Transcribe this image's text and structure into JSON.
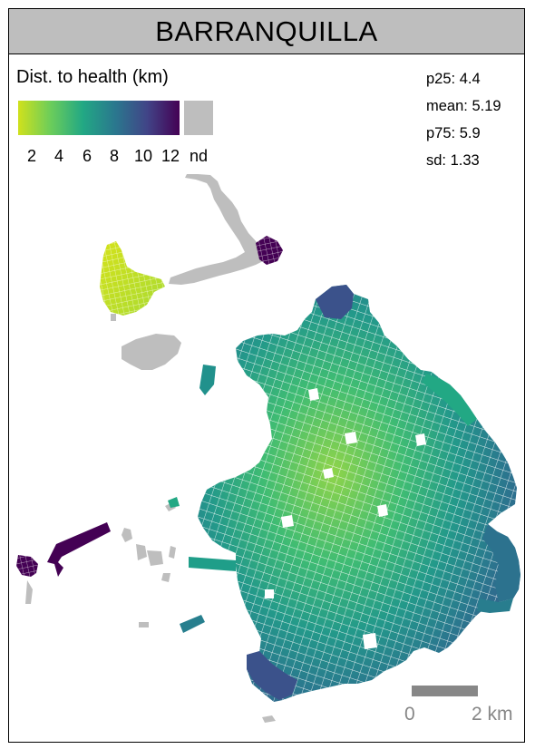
{
  "title": "BARRANQUILLA",
  "legend": {
    "title": "Dist. to health (km)",
    "ticks": [
      "2",
      "4",
      "6",
      "8",
      "10",
      "12"
    ],
    "nodata_label": "nd",
    "gradient_colors": [
      "#d0e11c",
      "#6ccd5a",
      "#22a884",
      "#2a788e",
      "#414487",
      "#440154"
    ]
  },
  "stats": {
    "p25": "p25: 4.4",
    "mean": "mean: 5.19",
    "p75": "p75: 5.9",
    "sd": "sd: 1.33"
  },
  "scale": {
    "start": "0",
    "end": "2 km"
  },
  "colors": {
    "title_bar": "#bebebe",
    "nodata": "#bebebe",
    "scalebar": "#878787"
  }
}
